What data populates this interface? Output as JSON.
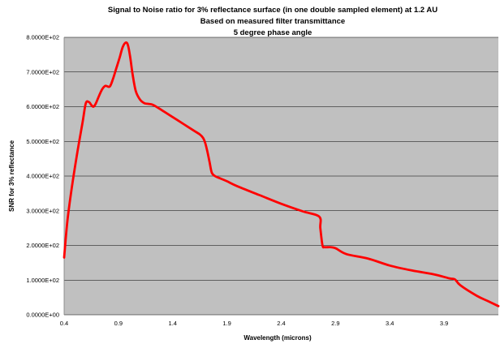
{
  "chart_data": {
    "type": "line",
    "title": [
      "Signal to Noise ratio for 3% reflectance surface (in one double sampled element) at 1.2 AU",
      "Based on measured filter transmittance",
      "5 degree phase angle"
    ],
    "xlabel": "Wavelength (microns)",
    "ylabel": "SNR for 3% reflectance",
    "xlim": [
      0.4,
      4.4
    ],
    "ylim": [
      0,
      800
    ],
    "x_ticks": [
      0.4,
      0.9,
      1.4,
      1.9,
      2.4,
      2.9,
      3.4,
      3.9
    ],
    "x_tick_labels": [
      "0.4",
      "0.9",
      "1.4",
      "1.9",
      "2.4",
      "2.9",
      "3.4",
      "3.9"
    ],
    "y_ticks": [
      0,
      100,
      200,
      300,
      400,
      500,
      600,
      700,
      800
    ],
    "y_tick_labels": [
      "0.0000E+00",
      "1.0000E+02",
      "2.0000E+02",
      "3.0000E+02",
      "4.0000E+02",
      "5.0000E+02",
      "6.0000E+02",
      "7.0000E+02",
      "8.0000E+02"
    ],
    "grid": "horizontal",
    "plot_background": "#c0c0c0",
    "series": [
      {
        "color": "#ff0000",
        "x": [
          0.4,
          0.43,
          0.47,
          0.52,
          0.57,
          0.6,
          0.63,
          0.65,
          0.67,
          0.69,
          0.72,
          0.75,
          0.78,
          0.82,
          0.85,
          0.88,
          0.91,
          0.94,
          0.97,
          0.99,
          1.01,
          1.03,
          1.06,
          1.1,
          1.14,
          1.18,
          1.22,
          1.3,
          1.4,
          1.5,
          1.6,
          1.65,
          1.68,
          1.7,
          1.72,
          1.74,
          1.76,
          1.79,
          1.84,
          1.9,
          2.0,
          2.2,
          2.4,
          2.6,
          2.75,
          2.76,
          2.78,
          2.8,
          2.85,
          2.9,
          3.0,
          3.2,
          3.4,
          3.6,
          3.8,
          3.95,
          4.0,
          4.05,
          4.2,
          4.3,
          4.4
        ],
        "y": [
          165,
          270,
          365,
          465,
          555,
          610,
          613,
          605,
          600,
          608,
          630,
          650,
          660,
          658,
          680,
          710,
          740,
          772,
          785,
          775,
          740,
          695,
          645,
          620,
          610,
          608,
          605,
          590,
          570,
          550,
          530,
          520,
          510,
          495,
          470,
          440,
          410,
          400,
          393,
          385,
          370,
          345,
          320,
          298,
          283,
          250,
          200,
          195,
          195,
          192,
          175,
          162,
          142,
          128,
          117,
          105,
          102,
          85,
          55,
          40,
          25
        ]
      }
    ]
  }
}
